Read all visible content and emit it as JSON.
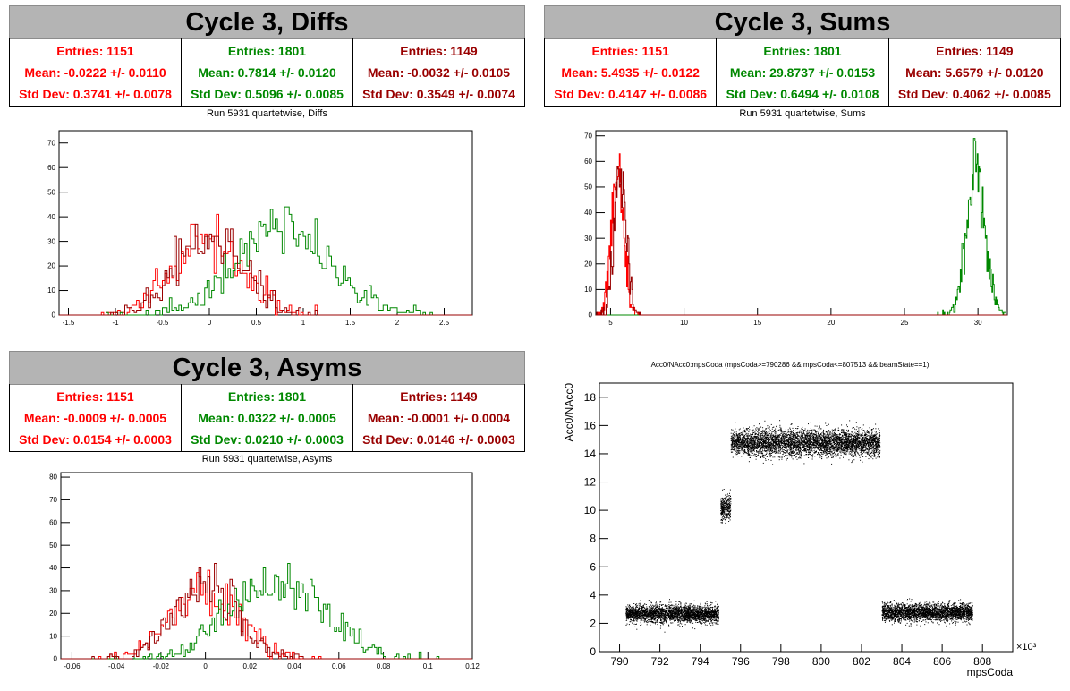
{
  "colors": {
    "red": "#ff0000",
    "green": "#008800",
    "darkred": "#990000"
  },
  "panels": [
    {
      "title": "Cycle 3, Diffs",
      "subtitle": "Run 5931 quartetwise, Diffs",
      "stats": [
        {
          "entries": "Entries: 1151",
          "mean": "Mean: -0.0222 +/- 0.0110",
          "std": "Std Dev: 0.3741 +/- 0.0078",
          "color": "#ff0000"
        },
        {
          "entries": "Entries: 1801",
          "mean": "Mean: 0.7814 +/- 0.0120",
          "std": "Std Dev: 0.5096 +/- 0.0085",
          "color": "#008800"
        },
        {
          "entries": "Entries: 1149",
          "mean": "Mean: -0.0032 +/- 0.0105",
          "std": "Std Dev: 0.3549 +/- 0.0074",
          "color": "#990000"
        }
      ]
    },
    {
      "title": "Cycle 3, Sums",
      "subtitle": "Run 5931 quartetwise, Sums",
      "stats": [
        {
          "entries": "Entries: 1151",
          "mean": "Mean: 5.4935 +/- 0.0122",
          "std": "Std Dev: 0.4147 +/- 0.0086",
          "color": "#ff0000"
        },
        {
          "entries": "Entries: 1801",
          "mean": "Mean: 29.8737 +/- 0.0153",
          "std": "Std Dev: 0.6494 +/- 0.0108",
          "color": "#008800"
        },
        {
          "entries": "Entries: 1149",
          "mean": "Mean: 5.6579 +/- 0.0120",
          "std": "Std Dev: 0.4062 +/- 0.0085",
          "color": "#990000"
        }
      ]
    },
    {
      "title": "Cycle 3, Asyms",
      "subtitle": "Run 5931 quartetwise, Asyms",
      "stats": [
        {
          "entries": "Entries: 1151",
          "mean": "Mean: -0.0009 +/- 0.0005",
          "std": "Std Dev: 0.0154 +/- 0.0003",
          "color": "#ff0000"
        },
        {
          "entries": "Entries: 1801",
          "mean": "Mean: 0.0322 +/- 0.0005",
          "std": "Std Dev: 0.0210 +/- 0.0003",
          "color": "#008800"
        },
        {
          "entries": "Entries: 1149",
          "mean": "Mean: -0.0001 +/- 0.0004",
          "std": "Std Dev: 0.0146 +/- 0.0003",
          "color": "#990000"
        }
      ]
    }
  ],
  "chart_data": [
    {
      "type": "histogram",
      "title": "Run 5931 quartetwise, Diffs",
      "xlim": [
        -1.6,
        2.8
      ],
      "ylim": [
        0,
        75
      ],
      "xticks": [
        -1.5,
        -1,
        -0.5,
        0,
        0.5,
        1,
        1.5,
        2,
        2.5
      ],
      "yticks": [
        0,
        10,
        20,
        30,
        40,
        50,
        60,
        70
      ],
      "grid": false,
      "series": [
        {
          "color": "#ff0000",
          "entries": 1151,
          "mean": -0.0222,
          "std": 0.3741
        },
        {
          "color": "#008800",
          "entries": 1801,
          "mean": 0.7814,
          "std": 0.5096
        },
        {
          "color": "#990000",
          "entries": 1149,
          "mean": -0.0032,
          "std": 0.3549
        }
      ]
    },
    {
      "type": "histogram",
      "title": "Run 5931 quartetwise, Sums",
      "xlim": [
        4,
        32
      ],
      "ylim": [
        0,
        72
      ],
      "xticks": [
        5,
        10,
        15,
        20,
        25,
        30
      ],
      "yticks": [
        0,
        10,
        20,
        30,
        40,
        50,
        60,
        70
      ],
      "grid": false,
      "series": [
        {
          "color": "#ff0000",
          "entries": 1151,
          "mean": 5.4935,
          "std": 0.4147
        },
        {
          "color": "#008800",
          "entries": 1801,
          "mean": 29.8737,
          "std": 0.6494
        },
        {
          "color": "#990000",
          "entries": 1149,
          "mean": 5.6579,
          "std": 0.4062
        }
      ]
    },
    {
      "type": "histogram",
      "title": "Run 5931 quartetwise, Asyms",
      "xlim": [
        -0.065,
        0.12
      ],
      "ylim": [
        0,
        82
      ],
      "xticks": [
        -0.06,
        -0.04,
        -0.02,
        0,
        0.02,
        0.04,
        0.06,
        0.08,
        0.1,
        0.12
      ],
      "yticks": [
        0,
        10,
        20,
        30,
        40,
        50,
        60,
        70,
        80
      ],
      "grid": false,
      "series": [
        {
          "color": "#ff0000",
          "entries": 1151,
          "mean": -0.0009,
          "std": 0.0154
        },
        {
          "color": "#008800",
          "entries": 1801,
          "mean": 0.0322,
          "std": 0.021
        },
        {
          "color": "#990000",
          "entries": 1149,
          "mean": -0.0001,
          "std": 0.0146
        }
      ]
    },
    {
      "type": "scatter",
      "title": "Acc0/NAcc0:mpsCoda (mpsCoda>=790286 && mpsCoda<=807513 && beamState==1)",
      "xlabel": "mpsCoda",
      "ylabel": "Acc0/NAcc0",
      "xunit": "×10³",
      "xlim": [
        789,
        809.5
      ],
      "ylim": [
        0,
        19
      ],
      "xticks": [
        790,
        792,
        794,
        796,
        798,
        800,
        802,
        804,
        806,
        808
      ],
      "yticks": [
        0,
        2,
        4,
        6,
        8,
        10,
        12,
        14,
        16,
        18
      ],
      "grid": false,
      "clusters": [
        {
          "x": [
            790.3,
            794.9
          ],
          "y": 2.7,
          "spread": 0.6
        },
        {
          "x": [
            795.0,
            795.5
          ],
          "y": 10.2,
          "spread": 0.9
        },
        {
          "x": [
            795.5,
            802.9
          ],
          "y": 14.8,
          "spread": 0.9
        },
        {
          "x": [
            803.0,
            807.5
          ],
          "y": 2.8,
          "spread": 0.6
        }
      ]
    }
  ]
}
